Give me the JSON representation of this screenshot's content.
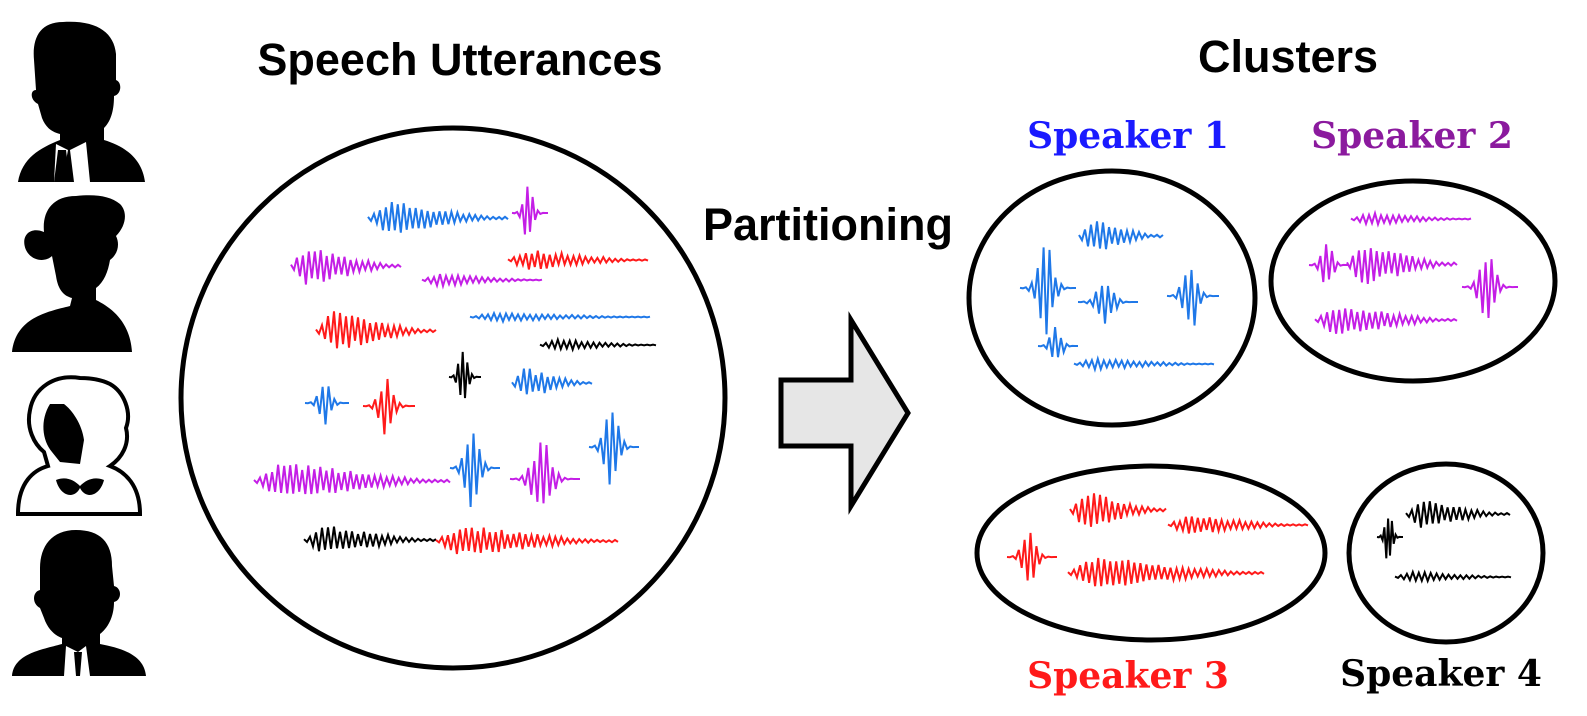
{
  "titles": {
    "input": "Speech Utterances",
    "output": "Clusters",
    "process": "Partitioning"
  },
  "speakers": [
    {
      "label": "Speaker 1",
      "color": "#1a1aff",
      "wave_color": "#1f78e8"
    },
    {
      "label": "Speaker 2",
      "color": "#8b1a9e",
      "wave_color": "#c41ee6"
    },
    {
      "label": "Speaker 3",
      "color": "#ff1a1a",
      "wave_color": "#ff1a1a"
    },
    {
      "label": "Speaker 4",
      "color": "#000000",
      "wave_color": "#000000"
    }
  ],
  "arrow_fill": "#e6e6e6",
  "icons": [
    "man-silhouette-icon",
    "woman-silhouette-icon",
    "elderly-woman-silhouette-icon",
    "bald-man-silhouette-icon"
  ]
}
